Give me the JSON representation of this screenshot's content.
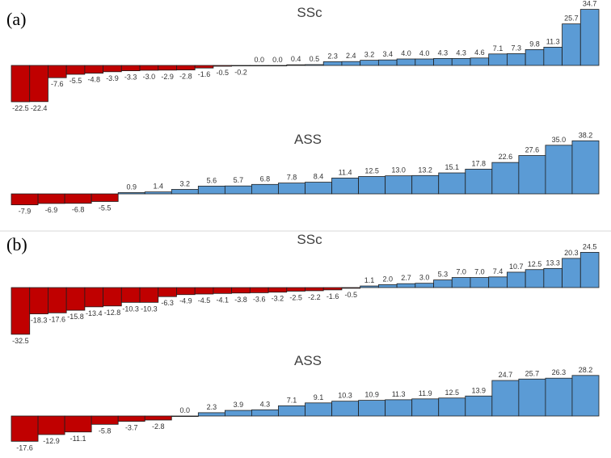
{
  "figure": {
    "panels": [
      {
        "label": "(a)"
      },
      {
        "label": "(b)"
      }
    ],
    "colors": {
      "negative": "#c00000",
      "positive": "#5b9bd5",
      "border": "#1f1f1f",
      "label": "#333333"
    }
  },
  "chart_data": [
    {
      "type": "bar",
      "panel": "(a)",
      "title": "SSc",
      "values": [
        -22.5,
        -22.4,
        -7.6,
        -5.5,
        -4.8,
        -3.9,
        -3.3,
        -3.0,
        -2.9,
        -2.8,
        -1.6,
        -0.5,
        -0.2,
        0.0,
        0.0,
        0.4,
        0.5,
        2.3,
        2.4,
        3.2,
        3.4,
        4.0,
        4.0,
        4.3,
        4.3,
        4.6,
        7.1,
        7.3,
        9.8,
        11.3,
        25.7,
        34.7
      ],
      "labels": [
        "-22.5",
        "-22.4",
        "-7.6",
        "-5.5",
        "-4.8",
        "-3.9",
        "-3.3",
        "-3.0",
        "-2.9",
        "-2.8",
        "-1.6",
        "-0.5",
        "-0.2",
        "0.0",
        "0.0",
        "0.4",
        "0.5",
        "2.3",
        "2.4",
        "3.2",
        "3.4",
        "4.0",
        "4.0",
        "4.3",
        "4.3",
        "4.6",
        "7.1",
        "7.3",
        "9.8",
        "11.3",
        "25.7",
        "34.7"
      ],
      "xlabel": "",
      "ylabel": "",
      "grid": false,
      "legend": "none"
    },
    {
      "type": "bar",
      "panel": "(a)",
      "title": "ASS",
      "values": [
        -7.9,
        -6.9,
        -6.8,
        -5.5,
        0.9,
        1.4,
        3.2,
        5.6,
        5.7,
        6.8,
        7.8,
        8.4,
        11.4,
        12.5,
        13.0,
        13.2,
        15.1,
        17.8,
        22.6,
        27.6,
        35.0,
        38.2
      ],
      "labels": [
        "-7.9",
        "-6.9",
        "-6.8",
        "-5.5",
        "0.9",
        "1.4",
        "3.2",
        "5.6",
        "5.7",
        "6.8",
        "7.8",
        "8.4",
        "11.4",
        "12.5",
        "13.0",
        "13.2",
        "15.1",
        "17.8",
        "22.6",
        "27.6",
        "35.0",
        "38.2"
      ],
      "xlabel": "",
      "ylabel": "",
      "grid": false,
      "legend": "none"
    },
    {
      "type": "bar",
      "panel": "(b)",
      "title": "SSc",
      "values": [
        -32.5,
        -18.3,
        -17.6,
        -15.8,
        -13.4,
        -12.8,
        -10.3,
        -10.3,
        -6.3,
        -4.9,
        -4.5,
        -4.1,
        -3.8,
        -3.6,
        -3.2,
        -2.5,
        -2.2,
        -1.6,
        -0.5,
        1.1,
        2.0,
        2.7,
        3.0,
        5.3,
        7.0,
        7.0,
        7.4,
        10.7,
        12.5,
        13.3,
        20.3,
        24.5
      ],
      "labels": [
        "-32.5",
        "-18.3",
        "-17.6",
        "-15.8",
        "-13.4",
        "-12.8",
        "-10.3",
        "-10.3",
        "-6.3",
        "-4.9",
        "-4.5",
        "-4.1",
        "-3.8",
        "-3.6",
        "-3.2",
        "-2.5",
        "-2.2",
        "-1.6",
        "-0.5",
        "1.1",
        "2.0",
        "2.7",
        "3.0",
        "5.3",
        "7.0",
        "7.0",
        "7.4",
        "10.7",
        "12.5",
        "13.3",
        "20.3",
        "24.5"
      ],
      "xlabel": "",
      "ylabel": "",
      "grid": false,
      "legend": "none"
    },
    {
      "type": "bar",
      "panel": "(b)",
      "title": "ASS",
      "values": [
        -17.6,
        -12.9,
        -11.1,
        -5.8,
        -3.7,
        -2.8,
        0.0,
        2.3,
        3.9,
        4.3,
        7.1,
        9.1,
        10.3,
        10.9,
        11.3,
        11.9,
        12.5,
        13.9,
        24.7,
        25.7,
        26.3,
        28.2
      ],
      "labels": [
        "-17.6",
        "-12.9",
        "-11.1",
        "-5.8",
        "-3.7",
        "-2.8",
        "0.0",
        "2.3",
        "3.9",
        "4.3",
        "7.1",
        "9.1",
        "10.3",
        "10.9",
        "11.3",
        "11.9",
        "12.5",
        "13.9",
        "24.7",
        "25.7",
        "26.3",
        "28.2"
      ],
      "xlabel": "",
      "ylabel": "",
      "grid": false,
      "legend": "none"
    }
  ]
}
